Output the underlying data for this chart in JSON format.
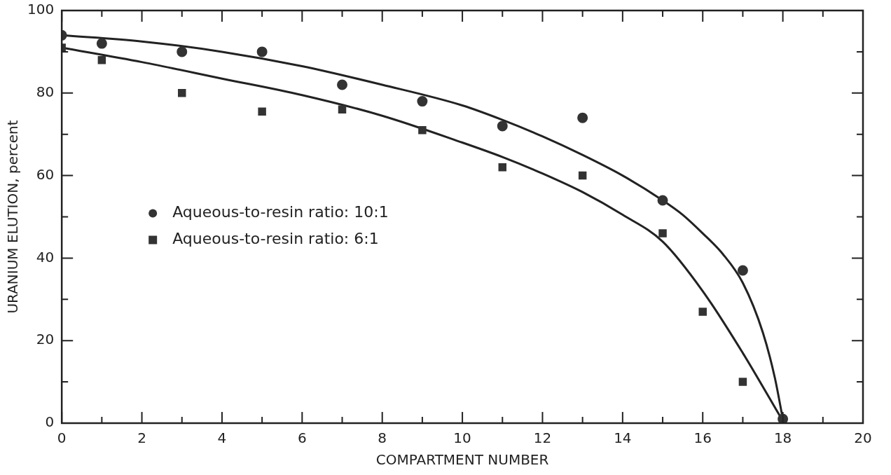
{
  "chart_data": {
    "type": "scatter",
    "xlabel": "COMPARTMENT NUMBER",
    "ylabel": "URANIUM ELUTION, percent",
    "xlim": [
      0,
      20
    ],
    "ylim": [
      0,
      100
    ],
    "xticks": [
      0,
      {
        "value": 1,
        "label": null
      },
      2,
      {
        "value": 3,
        "label": null
      },
      4,
      {
        "value": 5,
        "label": null
      },
      6,
      {
        "value": 7,
        "label": null
      },
      8,
      {
        "value": 9,
        "label": null
      },
      10,
      {
        "value": 11,
        "label": null
      },
      12,
      {
        "value": 13,
        "label": null
      },
      14,
      {
        "value": 15,
        "label": null
      },
      16,
      {
        "value": 17,
        "label": null
      },
      18,
      {
        "value": 19,
        "label": null
      },
      20
    ],
    "yticks": [
      0,
      {
        "value": 10,
        "label": null
      },
      20,
      {
        "value": 30,
        "label": null
      },
      40,
      {
        "value": 50,
        "label": null
      },
      60,
      {
        "value": 70,
        "label": null
      },
      80,
      {
        "value": 90,
        "label": null
      },
      100
    ],
    "grid": false,
    "legend": "center left",
    "series": [
      {
        "name": "Aqueous-to-resin ratio: 10:1",
        "color": "#333333",
        "marker": "circle",
        "x": [
          0,
          1,
          3,
          5,
          7,
          9,
          11,
          13,
          15,
          17,
          18
        ],
        "values": [
          94,
          92,
          90,
          90,
          82,
          78,
          72,
          74,
          54,
          37,
          1
        ]
      },
      {
        "name": "Aqueous-to-resin ratio: 6:1",
        "color": "#333333",
        "marker": "square",
        "x": [
          0,
          1,
          3,
          5,
          7,
          9,
          11,
          13,
          15,
          16,
          17
        ],
        "values": [
          91,
          88,
          80,
          75.5,
          76,
          71,
          62,
          60,
          46,
          27,
          10
        ]
      },
      {
        "type": "line",
        "color": "#222222",
        "marker": "none",
        "x": [
          0,
          2,
          4,
          6,
          8,
          10,
          11,
          12,
          13,
          14,
          15,
          15.5,
          16,
          16.5,
          17,
          17.5,
          17.8,
          18
        ],
        "values": [
          94,
          92.5,
          90,
          86.5,
          82,
          77,
          73.5,
          69.5,
          65,
          60,
          54,
          50.5,
          46,
          41,
          34,
          22,
          11,
          1
        ]
      },
      {
        "type": "line",
        "color": "#222222",
        "marker": "none",
        "x": [
          0,
          2,
          4,
          6,
          8,
          10,
          11,
          12,
          13,
          14,
          15,
          16,
          17,
          18
        ],
        "values": [
          91,
          87.5,
          83.5,
          79.5,
          74.5,
          68,
          64.5,
          60.5,
          56,
          50.5,
          44,
          32,
          17,
          0.5
        ]
      }
    ]
  }
}
